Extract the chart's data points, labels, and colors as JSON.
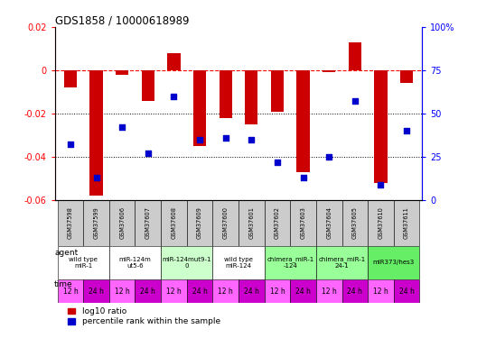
{
  "title": "GDS1858 / 10000618989",
  "samples": [
    "GSM37598",
    "GSM37599",
    "GSM37606",
    "GSM37607",
    "GSM37608",
    "GSM37609",
    "GSM37600",
    "GSM37601",
    "GSM37602",
    "GSM37603",
    "GSM37604",
    "GSM37605",
    "GSM37610",
    "GSM37611"
  ],
  "log10_ratio": [
    -0.008,
    -0.058,
    -0.002,
    -0.014,
    0.008,
    -0.035,
    -0.022,
    -0.025,
    -0.019,
    -0.047,
    -0.001,
    0.013,
    -0.052,
    -0.006
  ],
  "percentile_rank": [
    32,
    13,
    42,
    27,
    60,
    35,
    36,
    35,
    22,
    13,
    25,
    57,
    9,
    40
  ],
  "ylim_left": [
    -0.06,
    0.02
  ],
  "ylim_right": [
    0,
    100
  ],
  "yticks_left": [
    0.02,
    0,
    -0.02,
    -0.04,
    -0.06
  ],
  "yticks_right": [
    100,
    75,
    50,
    25,
    0
  ],
  "bar_color": "#cc0000",
  "dot_color": "#0000cc",
  "agent_groups": [
    {
      "label": "wild type\nmiR-1",
      "start": 0,
      "end": 2,
      "color": "#ffffff"
    },
    {
      "label": "miR-124m\nut5-6",
      "start": 2,
      "end": 4,
      "color": "#ffffff"
    },
    {
      "label": "miR-124mut9-1\n0",
      "start": 4,
      "end": 6,
      "color": "#ccffcc"
    },
    {
      "label": "wild type\nmiR-124",
      "start": 6,
      "end": 8,
      "color": "#ffffff"
    },
    {
      "label": "chimera_miR-1\n-124",
      "start": 8,
      "end": 10,
      "color": "#99ff99"
    },
    {
      "label": "chimera_miR-1\n24-1",
      "start": 10,
      "end": 12,
      "color": "#99ff99"
    },
    {
      "label": "miR373/hes3",
      "start": 12,
      "end": 14,
      "color": "#66ee66"
    }
  ],
  "time_color_a": "#ff66ff",
  "time_color_b": "#cc00cc",
  "bar_width": 0.5,
  "dot_size": 20
}
